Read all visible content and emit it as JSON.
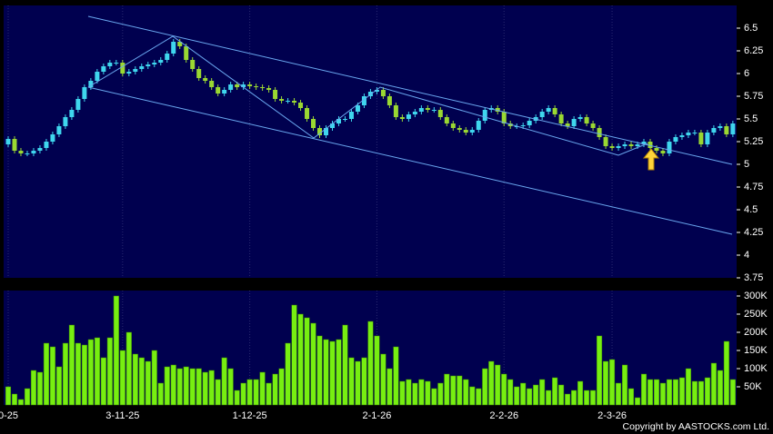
{
  "chart_data": [
    {
      "type": "candlestick",
      "up_color": "#3fd6ee",
      "down_color": "#9ad832",
      "background": "#00004f",
      "ylim": [
        3.75,
        6.75
      ],
      "yticks": [
        3.75,
        4,
        4.25,
        4.5,
        4.75,
        5,
        5.25,
        5.5,
        5.75,
        6,
        6.25,
        6.5
      ],
      "open": [
        5.22,
        5.28,
        5.15,
        5.12,
        5.12,
        5.15,
        5.18,
        5.25,
        5.33,
        5.42,
        5.52,
        5.6,
        5.72,
        5.85,
        5.92,
        6.02,
        6.08,
        6.12,
        6.12,
        6.0,
        6.02,
        6.05,
        6.08,
        6.1,
        6.12,
        6.15,
        6.22,
        6.35,
        6.3,
        6.15,
        6.05,
        5.95,
        5.92,
        5.85,
        5.78,
        5.82,
        5.88,
        5.85,
        5.88,
        5.86,
        5.85,
        5.84,
        5.82,
        5.72,
        5.7,
        5.7,
        5.68,
        5.62,
        5.5,
        5.4,
        5.32,
        5.4,
        5.45,
        5.5,
        5.5,
        5.58,
        5.65,
        5.75,
        5.8,
        5.82,
        5.75,
        5.65,
        5.52,
        5.5,
        5.55,
        5.58,
        5.62,
        5.6,
        5.6,
        5.52,
        5.45,
        5.4,
        5.38,
        5.35,
        5.38,
        5.48,
        5.6,
        5.62,
        5.58,
        5.45,
        5.42,
        5.42,
        5.43,
        5.48,
        5.52,
        5.58,
        5.62,
        5.55,
        5.45,
        5.42,
        5.5,
        5.52,
        5.45,
        5.4,
        5.3,
        5.2,
        5.18,
        5.2,
        5.22,
        5.2,
        5.22,
        5.25,
        5.18,
        5.15,
        5.12,
        5.25,
        5.3,
        5.32,
        5.35,
        5.35,
        5.22,
        5.35,
        5.4,
        5.42,
        5.33
      ],
      "high": [
        5.31,
        5.31,
        5.18,
        5.15,
        5.18,
        5.21,
        5.28,
        5.36,
        5.45,
        5.55,
        5.63,
        5.75,
        5.88,
        5.95,
        6.05,
        6.11,
        6.15,
        6.15,
        6.15,
        6.05,
        6.08,
        6.11,
        6.13,
        6.15,
        6.18,
        6.25,
        6.38,
        6.38,
        6.33,
        6.18,
        6.08,
        5.98,
        5.95,
        5.88,
        5.85,
        5.91,
        5.91,
        5.91,
        5.91,
        5.89,
        5.88,
        5.87,
        5.85,
        5.75,
        5.73,
        5.73,
        5.71,
        5.65,
        5.53,
        5.43,
        5.43,
        5.48,
        5.53,
        5.53,
        5.61,
        5.68,
        5.78,
        5.83,
        5.85,
        5.85,
        5.78,
        5.68,
        5.55,
        5.58,
        5.61,
        5.65,
        5.65,
        5.63,
        5.63,
        5.55,
        5.48,
        5.43,
        5.41,
        5.41,
        5.51,
        5.63,
        5.65,
        5.65,
        5.61,
        5.48,
        5.45,
        5.46,
        5.51,
        5.55,
        5.61,
        5.65,
        5.65,
        5.58,
        5.48,
        5.53,
        5.55,
        5.55,
        5.48,
        5.43,
        5.33,
        5.23,
        5.23,
        5.25,
        5.25,
        5.25,
        5.28,
        5.28,
        5.21,
        5.18,
        5.28,
        5.33,
        5.35,
        5.38,
        5.38,
        5.38,
        5.38,
        5.43,
        5.45,
        5.45,
        5.48
      ],
      "low": [
        5.19,
        5.12,
        5.09,
        5.09,
        5.09,
        5.12,
        5.15,
        5.22,
        5.3,
        5.39,
        5.49,
        5.57,
        5.69,
        5.82,
        5.89,
        5.99,
        6.05,
        6.09,
        5.97,
        5.97,
        5.99,
        6.02,
        6.05,
        6.07,
        6.09,
        6.12,
        6.19,
        6.27,
        6.12,
        6.02,
        5.92,
        5.89,
        5.82,
        5.75,
        5.75,
        5.79,
        5.82,
        5.82,
        5.83,
        5.82,
        5.81,
        5.79,
        5.69,
        5.67,
        5.67,
        5.65,
        5.59,
        5.47,
        5.37,
        5.29,
        5.29,
        5.37,
        5.42,
        5.47,
        5.47,
        5.55,
        5.62,
        5.72,
        5.77,
        5.72,
        5.62,
        5.49,
        5.47,
        5.47,
        5.52,
        5.55,
        5.57,
        5.57,
        5.49,
        5.42,
        5.37,
        5.35,
        5.32,
        5.32,
        5.35,
        5.45,
        5.57,
        5.55,
        5.42,
        5.39,
        5.39,
        5.39,
        5.4,
        5.45,
        5.49,
        5.55,
        5.52,
        5.42,
        5.39,
        5.39,
        5.47,
        5.42,
        5.37,
        5.27,
        5.17,
        5.15,
        5.15,
        5.17,
        5.17,
        5.17,
        5.19,
        5.15,
        5.12,
        5.09,
        5.09,
        5.22,
        5.27,
        5.29,
        5.32,
        5.19,
        5.19,
        5.32,
        5.37,
        5.3,
        5.3
      ],
      "close": [
        5.28,
        5.15,
        5.12,
        5.12,
        5.15,
        5.18,
        5.25,
        5.33,
        5.42,
        5.52,
        5.6,
        5.72,
        5.85,
        5.92,
        6.02,
        6.08,
        6.12,
        6.12,
        6.0,
        6.02,
        6.05,
        6.08,
        6.1,
        6.12,
        6.15,
        6.22,
        6.35,
        6.3,
        6.15,
        6.05,
        5.95,
        5.92,
        5.85,
        5.78,
        5.82,
        5.88,
        5.85,
        5.88,
        5.86,
        5.85,
        5.84,
        5.82,
        5.72,
        5.7,
        5.7,
        5.68,
        5.62,
        5.5,
        5.4,
        5.32,
        5.4,
        5.45,
        5.5,
        5.5,
        5.58,
        5.65,
        5.75,
        5.8,
        5.82,
        5.75,
        5.65,
        5.52,
        5.5,
        5.55,
        5.58,
        5.62,
        5.6,
        5.6,
        5.52,
        5.45,
        5.4,
        5.38,
        5.35,
        5.38,
        5.48,
        5.6,
        5.62,
        5.58,
        5.45,
        5.42,
        5.42,
        5.43,
        5.48,
        5.52,
        5.58,
        5.62,
        5.55,
        5.45,
        5.42,
        5.5,
        5.52,
        5.45,
        5.4,
        5.3,
        5.2,
        5.18,
        5.2,
        5.22,
        5.2,
        5.22,
        5.25,
        5.18,
        5.15,
        5.12,
        5.25,
        5.3,
        5.32,
        5.35,
        5.35,
        5.22,
        5.35,
        5.4,
        5.42,
        5.33,
        5.45
      ]
    },
    {
      "type": "bar",
      "color": "#77ee11",
      "background": "#00004f",
      "ylim": [
        0,
        315000
      ],
      "yticks": [
        {
          "value": 50000,
          "label": "50K"
        },
        {
          "value": 100000,
          "label": "100K"
        },
        {
          "value": 150000,
          "label": "150K"
        },
        {
          "value": 200000,
          "label": "200K"
        },
        {
          "value": 250000,
          "label": "250K"
        },
        {
          "value": 300000,
          "label": "300K"
        }
      ],
      "categories": [
        "0-25",
        null,
        null,
        null,
        null,
        null,
        null,
        null,
        null,
        null,
        null,
        null,
        null,
        null,
        null,
        null,
        null,
        null,
        "3-11-25",
        null,
        null,
        null,
        null,
        null,
        null,
        null,
        null,
        null,
        null,
        null,
        null,
        null,
        null,
        null,
        null,
        null,
        null,
        null,
        "1-12-25",
        null,
        null,
        null,
        null,
        null,
        null,
        null,
        null,
        null,
        null,
        null,
        null,
        null,
        null,
        null,
        null,
        null,
        null,
        null,
        "2-1-26",
        null,
        null,
        null,
        null,
        null,
        null,
        null,
        null,
        null,
        null,
        null,
        null,
        null,
        null,
        null,
        null,
        null,
        null,
        null,
        "2-2-26",
        null,
        null,
        null,
        null,
        null,
        null,
        null,
        null,
        null,
        null,
        null,
        null,
        null,
        null,
        null,
        null,
        "2-3-26",
        null,
        null,
        null,
        null,
        null,
        null,
        null,
        null,
        null,
        null,
        null,
        null,
        null,
        null,
        null,
        null,
        null,
        null,
        null
      ],
      "values": [
        50000,
        30000,
        15000,
        45000,
        95000,
        90000,
        170000,
        160000,
        105000,
        170000,
        220000,
        170000,
        165000,
        180000,
        185000,
        130000,
        185000,
        300000,
        150000,
        200000,
        140000,
        130000,
        120000,
        150000,
        60000,
        105000,
        110000,
        100000,
        105000,
        100000,
        100000,
        90000,
        95000,
        70000,
        130000,
        100000,
        40000,
        60000,
        70000,
        70000,
        90000,
        60000,
        85000,
        100000,
        170000,
        275000,
        250000,
        240000,
        225000,
        190000,
        180000,
        175000,
        180000,
        220000,
        130000,
        120000,
        130000,
        230000,
        190000,
        140000,
        100000,
        160000,
        65000,
        70000,
        60000,
        70000,
        65000,
        45000,
        60000,
        85000,
        80000,
        80000,
        70000,
        50000,
        45000,
        100000,
        120000,
        110000,
        85000,
        70000,
        50000,
        60000,
        45000,
        55000,
        70000,
        40000,
        75000,
        55000,
        30000,
        40000,
        65000,
        40000,
        40000,
        190000,
        120000,
        125000,
        60000,
        110000,
        45000,
        20000,
        85000,
        70000,
        70000,
        60000,
        70000,
        70000,
        75000,
        100000,
        65000,
        65000,
        75000,
        115000,
        95000,
        175000,
        70000
      ]
    }
  ],
  "credit": "Copyright by AASTOCKS.com Ltd."
}
